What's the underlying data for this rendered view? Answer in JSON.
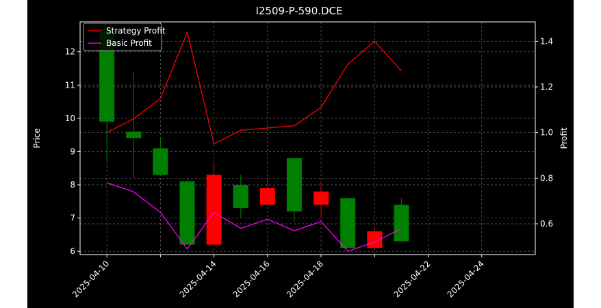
{
  "colors": {
    "figure_bg": "#000000",
    "page_bg": "#ffffff",
    "axis": "#ffffff",
    "grid": "#888888",
    "up": "#008000",
    "down": "#ff0000",
    "strategy_line": "#ff0000",
    "basic_line": "#ff00ff"
  },
  "chart_data": {
    "type": "candlestick+line",
    "title": "I2509-P-590.DCE",
    "xlabel": "",
    "ylabel": "Price",
    "ylabel_right": "Profit",
    "ylim": [
      5.9,
      12.9
    ],
    "ylim_right": [
      0.465,
      1.485
    ],
    "yticks": [
      6,
      7,
      8,
      9,
      10,
      11,
      12
    ],
    "yticks_right": [
      0.6,
      0.8,
      1.0,
      1.2,
      1.4
    ],
    "x_range": [
      "2025-04-09",
      "2025-04-26"
    ],
    "xtick_labels": [
      "2025-04-10",
      "2025-04-14",
      "2025-04-16",
      "2025-04-18",
      "2025-04-22",
      "2025-04-24"
    ],
    "xtick_positions": [
      "2025-04-10",
      "2025-04-12",
      "2025-04-14",
      "2025-04-16",
      "2025-04-18",
      "2025-04-20",
      "2025-04-22",
      "2025-04-24"
    ],
    "x_axis_type": "date",
    "grid": true,
    "legend": {
      "position": "top-left",
      "entries": [
        "Strategy Profit",
        "Basic Profit"
      ]
    },
    "candles": [
      {
        "x": "2025-04-10",
        "open": 9.9,
        "high": 12.7,
        "low": 8.7,
        "close": 12.7
      },
      {
        "x": "2025-04-11",
        "open": 9.4,
        "high": 11.4,
        "low": 8.2,
        "close": 9.6
      },
      {
        "x": "2025-04-12",
        "open": 8.3,
        "high": 9.4,
        "low": 8.3,
        "close": 9.1
      },
      {
        "x": "2025-04-13",
        "open": 6.2,
        "high": 8.2,
        "low": 6.2,
        "close": 8.1
      },
      {
        "x": "2025-04-14",
        "open": 8.3,
        "high": 8.7,
        "low": 6.2,
        "close": 6.2
      },
      {
        "x": "2025-04-15",
        "open": 7.3,
        "high": 8.3,
        "low": 7.0,
        "close": 8.0
      },
      {
        "x": "2025-04-16",
        "open": 7.9,
        "high": 8.2,
        "low": 7.4,
        "close": 7.4
      },
      {
        "x": "2025-04-17",
        "open": 7.2,
        "high": 8.8,
        "low": 6.9,
        "close": 8.8
      },
      {
        "x": "2025-04-18",
        "open": 7.8,
        "high": 8.1,
        "low": 7.0,
        "close": 7.4
      },
      {
        "x": "2025-04-19",
        "open": 6.1,
        "high": 7.6,
        "low": 6.1,
        "close": 7.6
      },
      {
        "x": "2025-04-20",
        "open": 6.6,
        "high": 6.7,
        "low": 6.1,
        "close": 6.1
      },
      {
        "x": "2025-04-21",
        "open": 6.3,
        "high": 7.6,
        "low": 6.3,
        "close": 7.4
      }
    ],
    "series": [
      {
        "name": "Strategy Profit",
        "axis": "right",
        "x": [
          "2025-04-10",
          "2025-04-11",
          "2025-04-12",
          "2025-04-13",
          "2025-04-14",
          "2025-04-15",
          "2025-04-16",
          "2025-04-17",
          "2025-04-18",
          "2025-04-19",
          "2025-04-20",
          "2025-04-21"
        ],
        "values": [
          1.0,
          1.06,
          1.15,
          1.44,
          0.95,
          1.01,
          1.02,
          1.03,
          1.11,
          1.3,
          1.4,
          1.27
        ]
      },
      {
        "name": "Basic Profit",
        "axis": "right",
        "x": [
          "2025-04-10",
          "2025-04-11",
          "2025-04-12",
          "2025-04-13",
          "2025-04-14",
          "2025-04-15",
          "2025-04-16",
          "2025-04-17",
          "2025-04-18",
          "2025-04-19",
          "2025-04-20",
          "2025-04-21"
        ],
        "values": [
          0.78,
          0.74,
          0.65,
          0.49,
          0.65,
          0.58,
          0.62,
          0.57,
          0.61,
          0.48,
          0.52,
          0.58
        ]
      }
    ]
  }
}
